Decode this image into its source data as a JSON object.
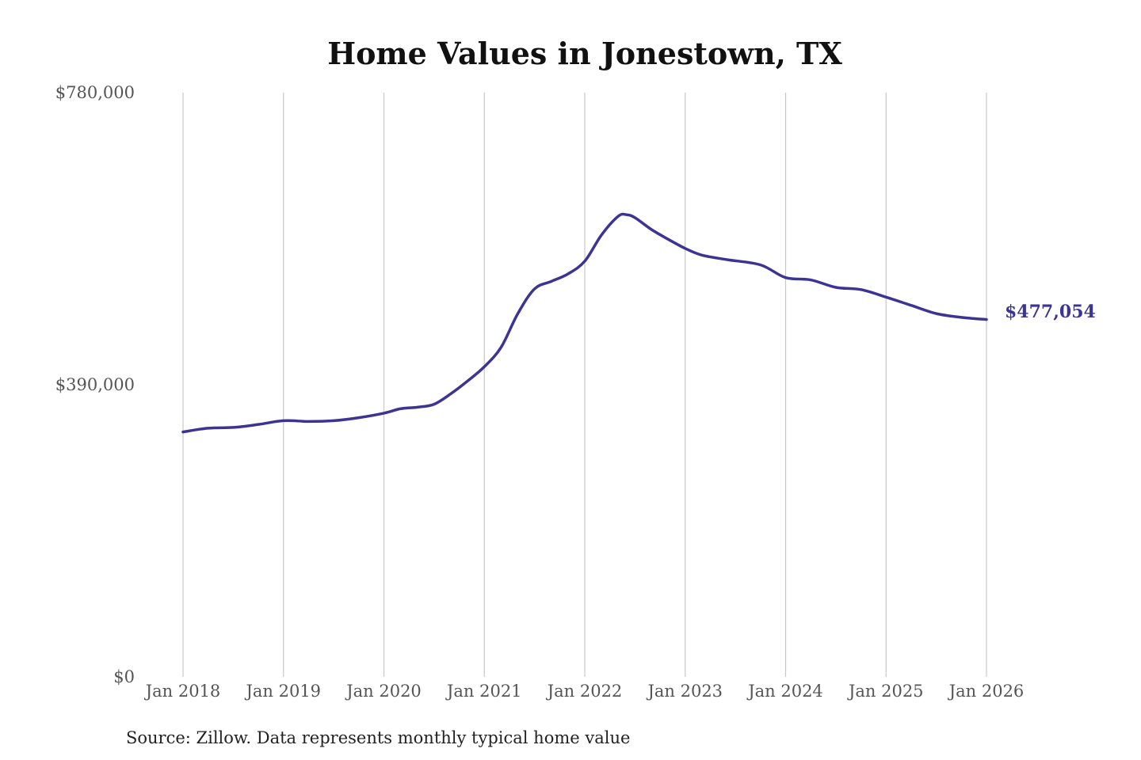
{
  "chart_data": {
    "type": "line",
    "title": "Home Values in Jonestown, TX",
    "source": "Source: Zillow. Data represents monthly typical home value",
    "xlabel": "",
    "ylabel": "",
    "ylim": [
      0,
      780000
    ],
    "y_ticks": [
      {
        "value": 0,
        "label": "$0"
      },
      {
        "value": 390000,
        "label": "$390,000"
      },
      {
        "value": 780000,
        "label": "$780,000"
      }
    ],
    "x_range": [
      "2018-01",
      "2026-01"
    ],
    "x_ticks": [
      {
        "date": "2018-01",
        "label": "Jan 2018"
      },
      {
        "date": "2019-01",
        "label": "Jan 2019"
      },
      {
        "date": "2020-01",
        "label": "Jan 2020"
      },
      {
        "date": "2021-01",
        "label": "Jan 2021"
      },
      {
        "date": "2022-01",
        "label": "Jan 2022"
      },
      {
        "date": "2023-01",
        "label": "Jan 2023"
      },
      {
        "date": "2024-01",
        "label": "Jan 2024"
      },
      {
        "date": "2025-01",
        "label": "Jan 2025"
      },
      {
        "date": "2026-01",
        "label": "Jan 2026"
      }
    ],
    "grid": "vertical",
    "line_color": "#3b3495",
    "end_label": "$477,054",
    "series": [
      {
        "x": [
          "2018-01",
          "2018-04",
          "2018-07",
          "2018-10",
          "2019-01",
          "2019-04",
          "2019-07",
          "2019-10",
          "2020-01",
          "2020-03",
          "2020-05",
          "2020-07",
          "2020-09",
          "2020-11",
          "2021-01",
          "2021-03",
          "2021-05",
          "2021-07",
          "2021-09",
          "2021-11",
          "2022-01",
          "2022-03",
          "2022-05",
          "2022-06",
          "2022-07",
          "2022-09",
          "2022-11",
          "2023-01",
          "2023-03",
          "2023-06",
          "2023-10",
          "2024-01",
          "2024-04",
          "2024-07",
          "2024-10",
          "2025-01",
          "2025-04",
          "2025-07",
          "2025-10",
          "2026-01"
        ],
        "y": [
          327000,
          332000,
          333000,
          337000,
          342000,
          341000,
          342000,
          346000,
          352000,
          358000,
          360000,
          364000,
          378000,
          395000,
          414000,
          440000,
          485000,
          518000,
          528000,
          538000,
          555000,
          590000,
          615000,
          617000,
          613000,
          597000,
          584000,
          572000,
          563000,
          557000,
          550000,
          533000,
          530000,
          520000,
          517000,
          507000,
          496000,
          485000,
          480000,
          477054
        ]
      }
    ]
  }
}
